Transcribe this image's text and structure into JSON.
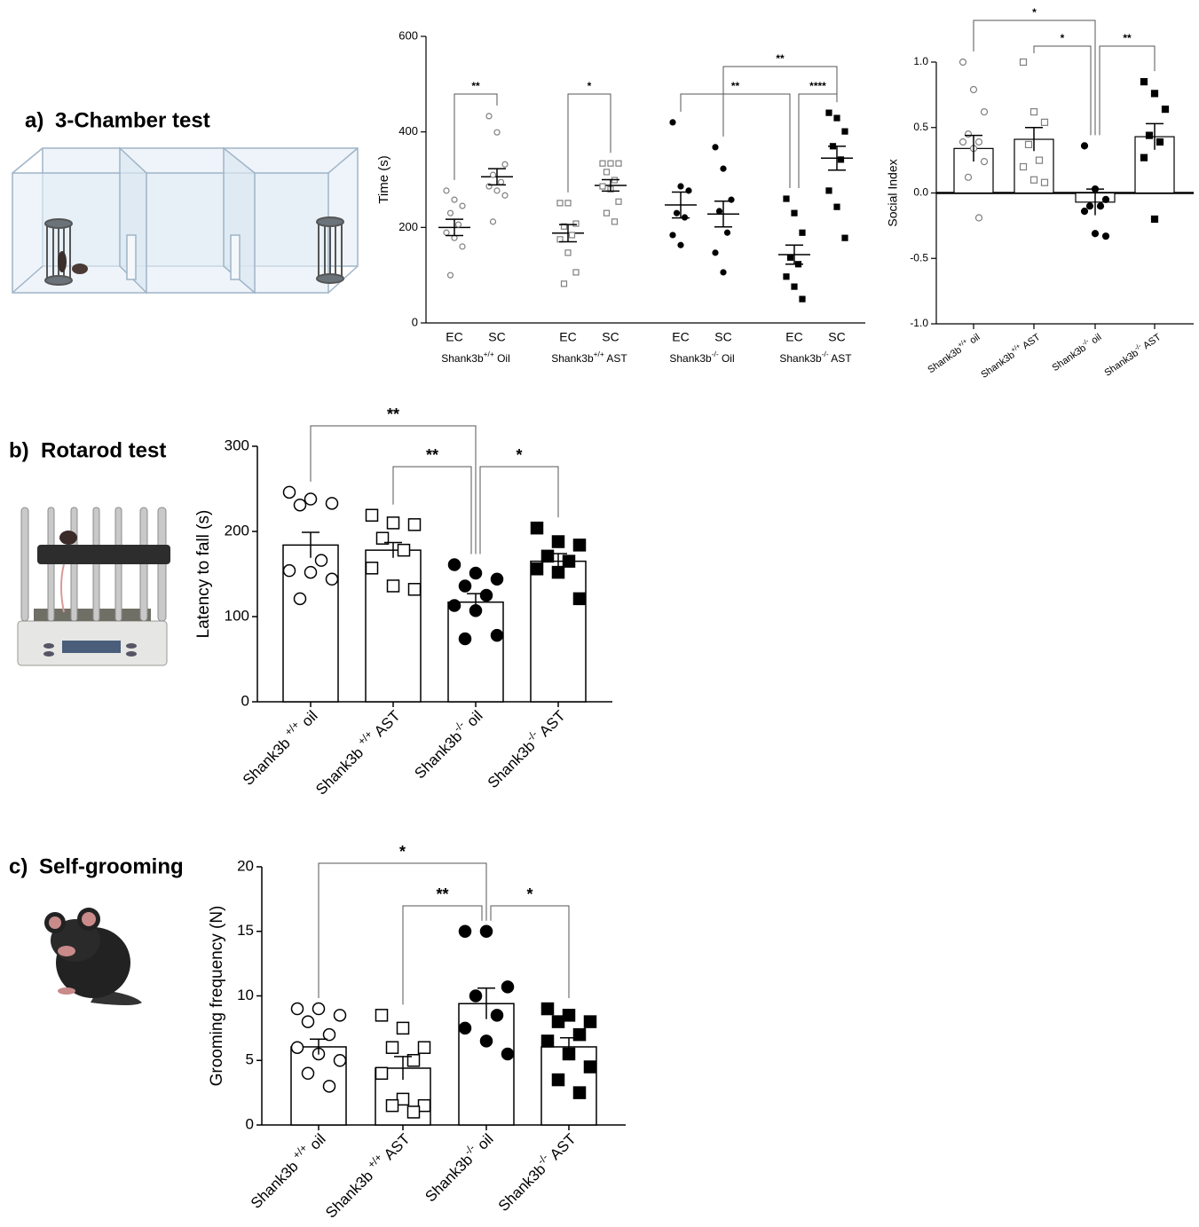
{
  "panel_labels": [
    "a)",
    "b)",
    "c)"
  ],
  "panel_titles": [
    "3-Chamber test",
    "Rotarod test",
    "Self-grooming"
  ],
  "chart_data": [
    {
      "type": "dot",
      "ylabel": "Time (s)",
      "ylim": [
        0,
        600
      ],
      "yticks": [
        0,
        200,
        400,
        600
      ],
      "groups": [
        "Shank3b+/+ Oil",
        "Shank3b+/+ AST",
        "Shank3b-/- Oil",
        "Shank3b-/- AST"
      ],
      "categories": [
        "EC",
        "SC",
        "EC",
        "SC",
        "EC",
        "SC",
        "EC",
        "SC"
      ],
      "series": [
        {
          "marker": "circle",
          "filled": false,
          "color": "#7f7f7f",
          "points": [
            277,
            258,
            245,
            230,
            206,
            189,
            178,
            160,
            100
          ],
          "mean": 200,
          "sem": 17
        },
        {
          "marker": "circle",
          "filled": false,
          "color": "#7f7f7f",
          "points": [
            433,
            399,
            332,
            310,
            295,
            286,
            277,
            267,
            212
          ],
          "mean": 306,
          "sem": 17
        },
        {
          "marker": "square",
          "filled": false,
          "color": "#7f7f7f",
          "points": [
            251,
            251,
            208,
            202,
            184,
            175,
            147,
            106,
            82
          ],
          "mean": 188,
          "sem": 18
        },
        {
          "marker": "square",
          "filled": false,
          "color": "#7f7f7f",
          "points": [
            334,
            334,
            334,
            316,
            299,
            286,
            280,
            254,
            230,
            212
          ],
          "mean": 288,
          "sem": 12
        },
        {
          "marker": "circle",
          "filled": true,
          "color": "#000000",
          "points": [
            420,
            286,
            277,
            230,
            221,
            184,
            163
          ],
          "mean": 247,
          "sem": 27
        },
        {
          "marker": "circle",
          "filled": true,
          "color": "#000000",
          "points": [
            368,
            323,
            258,
            234,
            189,
            147,
            106
          ],
          "mean": 228,
          "sem": 27
        },
        {
          "marker": "square",
          "filled": true,
          "color": "#000000",
          "points": [
            260,
            230,
            189,
            137,
            123,
            97,
            76,
            50
          ],
          "mean": 143,
          "sem": 20
        },
        {
          "marker": "square",
          "filled": true,
          "color": "#000000",
          "points": [
            440,
            429,
            401,
            370,
            342,
            277,
            243,
            178
          ],
          "mean": 345,
          "sem": 25
        }
      ],
      "brackets": [
        {
          "from": 0,
          "to": 1,
          "label": "**"
        },
        {
          "from": 2,
          "to": 3,
          "label": "*"
        },
        {
          "from": 4,
          "to": 6,
          "label": "**"
        },
        {
          "from": 5,
          "to": 7,
          "label": "**"
        },
        {
          "from": 6,
          "to": 7,
          "label": "****"
        }
      ]
    },
    {
      "type": "bar",
      "ylabel": "Social Index",
      "ylim": [
        -1,
        1
      ],
      "yticks": [
        {
          "value": -1,
          "label": "-1.0"
        },
        {
          "value": -0.5,
          "label": "-0.5"
        },
        {
          "value": 0,
          "label": "0.0"
        },
        {
          "value": 0.5,
          "label": "0.5"
        },
        {
          "value": 1,
          "label": "1.0"
        }
      ],
      "categories": [
        "Shank3b+/+ oil",
        "Shank3b+/+ AST",
        "Shank3b-/- oil",
        "Shank3b-/- AST"
      ],
      "series": [
        {
          "marker": "circle",
          "filled": false,
          "color": "#7f7f7f",
          "points": [
            1.0,
            0.79,
            0.62,
            0.45,
            0.39,
            0.39,
            0.34,
            0.24,
            0.12,
            -0.19
          ],
          "mean": 0.34,
          "sem": 0.1
        },
        {
          "marker": "square",
          "filled": false,
          "color": "#7f7f7f",
          "points": [
            1.0,
            0.62,
            0.54,
            0.37,
            0.25,
            0.2,
            0.1,
            0.08
          ],
          "mean": 0.41,
          "sem": 0.09
        },
        {
          "marker": "circle",
          "filled": true,
          "color": "#000000",
          "points": [
            0.36,
            0.03,
            -0.05,
            -0.1,
            -0.1,
            -0.14,
            -0.31,
            -0.33
          ],
          "mean": -0.07,
          "sem": 0.1
        },
        {
          "marker": "square",
          "filled": true,
          "color": "#000000",
          "points": [
            0.85,
            0.76,
            0.64,
            0.44,
            0.39,
            0.27,
            -0.2
          ],
          "mean": 0.43,
          "sem": 0.1
        }
      ],
      "brackets": [
        {
          "from": 0,
          "to": 2,
          "label": "*"
        },
        {
          "from": 1,
          "to": 2,
          "label": "*"
        },
        {
          "from": 2,
          "to": 3,
          "label": "**"
        }
      ]
    },
    {
      "type": "bar",
      "ylabel": "Latency to fall (s)",
      "ylim": [
        0,
        300
      ],
      "yticks": [
        0,
        100,
        200,
        300
      ],
      "categories": [
        "Shank3b +/+ oil",
        "Shank3b +/+ AST",
        "Shank3b-/- oil",
        "Shank3b-/- AST"
      ],
      "series": [
        {
          "marker": "circle",
          "filled": false,
          "color": "#000000",
          "points": [
            246,
            238,
            233,
            231,
            166,
            154,
            152,
            144,
            121
          ],
          "mean": 184,
          "sem": 15
        },
        {
          "marker": "square",
          "filled": false,
          "color": "#000000",
          "points": [
            219,
            210,
            208,
            192,
            178,
            157,
            136,
            132
          ],
          "mean": 178,
          "sem": 9
        },
        {
          "marker": "circle",
          "filled": true,
          "color": "#000000",
          "points": [
            161,
            151,
            144,
            136,
            125,
            113,
            107,
            78,
            74
          ],
          "mean": 117,
          "sem": 10
        },
        {
          "marker": "square",
          "filled": true,
          "color": "#000000",
          "points": [
            204,
            188,
            184,
            171,
            165,
            156,
            152,
            121
          ],
          "mean": 165,
          "sem": 9
        }
      ],
      "brackets": [
        {
          "from": 0,
          "to": 2,
          "label": "**"
        },
        {
          "from": 1,
          "to": 2,
          "label": "**"
        },
        {
          "from": 2,
          "to": 3,
          "label": "*"
        }
      ]
    },
    {
      "type": "bar",
      "ylabel": "Grooming frequency (N)",
      "ylim": [
        0,
        20
      ],
      "yticks": [
        0,
        5,
        10,
        15,
        20
      ],
      "categories": [
        "Shank3b +/+ oil",
        "Shank3b +/+ AST",
        "Shank3b-/- oil",
        "Shank3b-/- AST"
      ],
      "series": [
        {
          "marker": "circle",
          "filled": false,
          "color": "#000000",
          "points": [
            9,
            9,
            8.5,
            8,
            7,
            6,
            5.5,
            5,
            4,
            3
          ],
          "mean": 6.05,
          "sem": 0.6
        },
        {
          "marker": "square",
          "filled": false,
          "color": "#000000",
          "points": [
            8.5,
            7.5,
            6,
            6,
            5,
            4,
            2,
            1.5,
            1.5,
            1
          ],
          "mean": 4.4,
          "sem": 0.9
        },
        {
          "marker": "circle",
          "filled": true,
          "color": "#000000",
          "points": [
            15,
            15,
            10.7,
            10,
            8.5,
            7.5,
            6.5,
            5.5
          ],
          "mean": 9.4,
          "sem": 1.2
        },
        {
          "marker": "square",
          "filled": true,
          "color": "#000000",
          "points": [
            9,
            8.5,
            8,
            8,
            7,
            6.5,
            5.5,
            4.5,
            3.5,
            2.5
          ],
          "mean": 6.05,
          "sem": 0.7
        }
      ],
      "brackets": [
        {
          "from": 0,
          "to": 2,
          "label": "*"
        },
        {
          "from": 1,
          "to": 2,
          "label": "**"
        },
        {
          "from": 2,
          "to": 3,
          "label": "*"
        }
      ]
    }
  ]
}
